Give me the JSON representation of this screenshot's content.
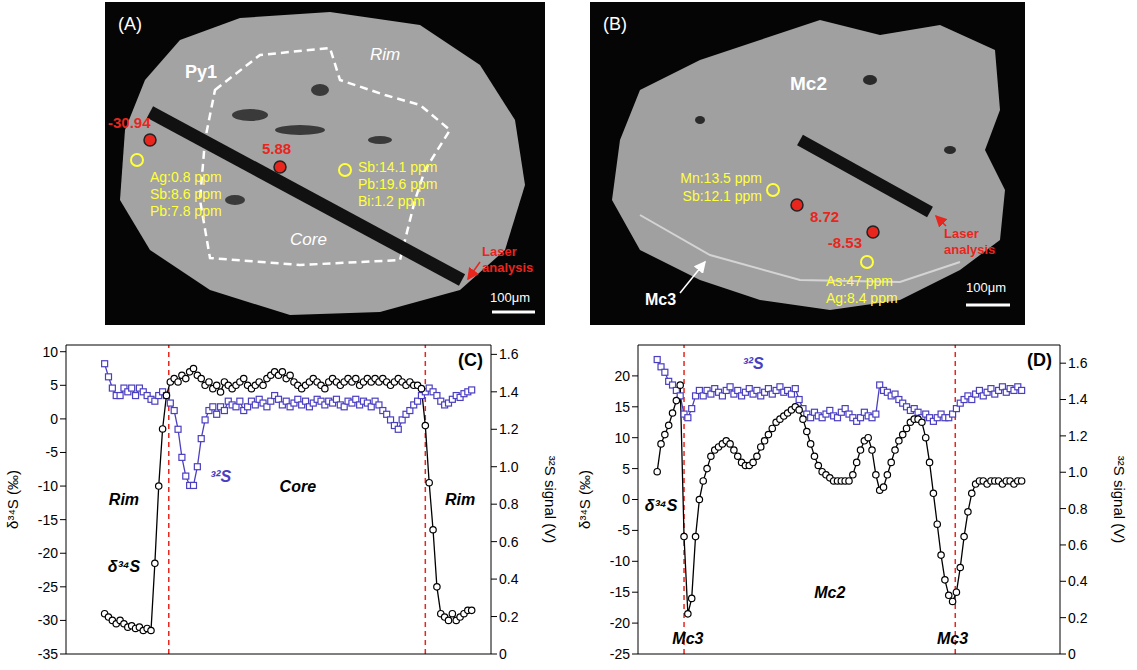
{
  "images": [
    {
      "label": "(A)",
      "labels": {
        "grain": "Py1",
        "core": "Core",
        "rim": "Rim"
      },
      "spots": [
        "-30.94",
        "5.88"
      ],
      "trace_elements": [
        [
          "Ag:0.8 ppm",
          "Sb:8.6 ppm",
          "Pb:7.8 ppm"
        ],
        [
          "Sb:14.1 ppm",
          "Pb:19.6 ppm",
          "Bi:1.2 ppm"
        ]
      ],
      "track": "Laser analysis",
      "scale_bar": "100μm"
    },
    {
      "label": "(B)",
      "labels": {
        "grain": "Mc2",
        "rim": "Mc3"
      },
      "spots": [
        "8.72",
        "-8.53"
      ],
      "trace_elements": [
        [
          "Mn:13.5 ppm",
          "Sb:12.1 ppm"
        ],
        [
          "As:47 ppm",
          "Ag:8.4 ppm"
        ]
      ],
      "track": "Laser analysis",
      "scale_bar": "100μm"
    }
  ],
  "chart_data": [
    {
      "type": "line",
      "panel_label": "(C)",
      "y_label": "δ³⁴S (‰)",
      "y2_label": "³²S signal (V)",
      "tick_labels": "y",
      "xlim": [
        0,
        110
      ],
      "ylim": [
        -35,
        11
      ],
      "yticks": [
        -35,
        -30,
        -25,
        -20,
        -15,
        -10,
        -5,
        0,
        5,
        10
      ],
      "y2lim": [
        0,
        1.65
      ],
      "y2ticks": [
        0,
        0.2,
        0.4,
        0.6,
        0.8,
        {
          "value": 1,
          "label": "1.0"
        },
        1.2,
        1.4,
        1.6
      ],
      "boundaries": [
        26.6,
        93
      ],
      "x": [
        10,
        11,
        12,
        13,
        14,
        15,
        16,
        17,
        18,
        19,
        20,
        21,
        22,
        23,
        24,
        25,
        26,
        27,
        28,
        29,
        30,
        31,
        32,
        33,
        34,
        35,
        36,
        37,
        38,
        39,
        40,
        41,
        42,
        43,
        44,
        45,
        46,
        47,
        48,
        49,
        50,
        51,
        52,
        53,
        54,
        55,
        56,
        57,
        58,
        59,
        60,
        61,
        62,
        63,
        64,
        65,
        66,
        67,
        68,
        69,
        70,
        71,
        72,
        73,
        74,
        75,
        76,
        77,
        78,
        79,
        80,
        81,
        82,
        83,
        84,
        85,
        86,
        87,
        88,
        89,
        90,
        91,
        92,
        93,
        94,
        95,
        96,
        97,
        98,
        99,
        100,
        101,
        102,
        103,
        104,
        105
      ],
      "series": [
        {
          "name": "δ³⁴S",
          "color": "#000000",
          "marker": "circle",
          "values": [
            -29,
            -29.5,
            -30,
            -30.5,
            -30,
            -30.5,
            -31,
            -30.8,
            -31.2,
            -31,
            -31.5,
            -31.2,
            -31.5,
            -21.5,
            -10,
            -1.5,
            3.5,
            5.5,
            6,
            5.5,
            6.5,
            6,
            7,
            7.5,
            6.5,
            6,
            5,
            5.5,
            4.5,
            5,
            4,
            5.5,
            5,
            4.5,
            5,
            5.5,
            6,
            5,
            4.5,
            5,
            5.5,
            5,
            6,
            6.5,
            7,
            6.5,
            7,
            6,
            6.5,
            5.5,
            5,
            4.5,
            5,
            5.5,
            6,
            5.5,
            5,
            4.5,
            5.5,
            6,
            5.5,
            5,
            5.5,
            6,
            5.5,
            6,
            5,
            5.5,
            6,
            5.5,
            6,
            5.5,
            6,
            5.5,
            5,
            5.5,
            6,
            5.5,
            5,
            5.5,
            5,
            5,
            4.5,
            -1,
            -9.5,
            -16.5,
            -25,
            -29,
            -29.5,
            -30,
            -29,
            -30,
            -29.5,
            -29,
            -28.5,
            -28.5
          ]
        },
        {
          "name": "³²S",
          "color": "#4a3fc0",
          "marker": "square",
          "axis": "y2",
          "values": [
            1.55,
            1.48,
            1.42,
            1.38,
            1.38,
            1.42,
            1.4,
            1.42,
            1.38,
            1.42,
            1.4,
            1.38,
            1.36,
            1.35,
            1.38,
            1.4,
            1.38,
            1.34,
            1.3,
            1.2,
            1.05,
            0.95,
            0.9,
            0.9,
            1.0,
            1.15,
            1.25,
            1.3,
            1.32,
            1.28,
            1.32,
            1.3,
            1.35,
            1.33,
            1.32,
            1.35,
            1.3,
            1.32,
            1.35,
            1.33,
            1.36,
            1.34,
            1.32,
            1.35,
            1.38,
            1.36,
            1.33,
            1.35,
            1.32,
            1.34,
            1.36,
            1.33,
            1.35,
            1.32,
            1.34,
            1.36,
            1.35,
            1.33,
            1.35,
            1.34,
            1.36,
            1.33,
            1.32,
            1.35,
            1.34,
            1.36,
            1.33,
            1.35,
            1.34,
            1.32,
            1.35,
            1.33,
            1.3,
            1.28,
            1.25,
            1.22,
            1.2,
            1.25,
            1.28,
            1.3,
            1.33,
            1.35,
            1.38,
            1.4,
            1.42,
            1.4,
            1.38,
            1.35,
            1.33,
            1.34,
            1.36,
            1.38,
            1.37,
            1.39,
            1.4,
            1.41
          ]
        }
      ],
      "annotations": [
        {
          "text": "Rim",
          "x": 15,
          "y": -12
        },
        {
          "text": "Core",
          "x": 60,
          "y": -10
        },
        {
          "text": "Rim",
          "x": 102,
          "y": -12
        },
        {
          "text": "δ³⁴S",
          "x": 15,
          "y": -22,
          "color": "#000000"
        },
        {
          "text": "³²S",
          "x": 40,
          "y": 0.95,
          "axis": "y2",
          "color": "#4a3fc0"
        }
      ]
    },
    {
      "type": "line",
      "panel_label": "(D)",
      "y_label": "δ³⁴S (‰)",
      "y2_label": "³²S signal (V)",
      "tick_labels": "y",
      "xlim": [
        0,
        110
      ],
      "ylim": [
        -25,
        25
      ],
      "yticks": [
        -25,
        -20,
        -15,
        -10,
        -5,
        0,
        5,
        10,
        15,
        20
      ],
      "y2lim": [
        0,
        1.7
      ],
      "y2ticks": [
        0,
        0.2,
        0.4,
        0.6,
        0.8,
        {
          "value": 1,
          "label": "1.0"
        },
        1.2,
        1.4,
        1.6
      ],
      "boundaries": [
        12,
        82.7
      ],
      "x": [
        5,
        6,
        7,
        8,
        9,
        10,
        11,
        12,
        13,
        14,
        15,
        16,
        17,
        18,
        19,
        20,
        21,
        22,
        23,
        24,
        25,
        26,
        27,
        28,
        29,
        30,
        31,
        32,
        33,
        34,
        35,
        36,
        37,
        38,
        39,
        40,
        41,
        42,
        43,
        44,
        45,
        46,
        47,
        48,
        49,
        50,
        51,
        52,
        53,
        54,
        55,
        56,
        57,
        58,
        59,
        60,
        61,
        62,
        63,
        64,
        65,
        66,
        67,
        68,
        69,
        70,
        71,
        72,
        73,
        74,
        75,
        76,
        77,
        78,
        79,
        80,
        81,
        82,
        83,
        84,
        85,
        86,
        87,
        88,
        89,
        90,
        91,
        92,
        93,
        94,
        95,
        96,
        97,
        98,
        99,
        100
      ],
      "series": [
        {
          "name": "δ³⁴S",
          "color": "#000000",
          "marker": "circle",
          "values": [
            4.5,
            9,
            10.5,
            12,
            14,
            16,
            18.5,
            -6,
            -18.5,
            -16,
            -6,
            0,
            3,
            5,
            7,
            8,
            8.5,
            9,
            9.5,
            9,
            8,
            7,
            6,
            5.5,
            5.5,
            6,
            7,
            8.5,
            9.5,
            10.5,
            11.5,
            12.5,
            13,
            13.5,
            14,
            14.5,
            15,
            14.5,
            13,
            11,
            9,
            7,
            5.5,
            4.5,
            4,
            3.5,
            3,
            3,
            3,
            3,
            3,
            4,
            6,
            8,
            9.5,
            10,
            8,
            4,
            1.5,
            2,
            4,
            6,
            8,
            9.5,
            10.5,
            11.5,
            12.5,
            13,
            13,
            12.5,
            10,
            6,
            1,
            -4,
            -9,
            -13,
            -15.5,
            -16.5,
            -15,
            -11,
            -6,
            -2,
            1,
            2.5,
            3,
            3,
            2.5,
            3,
            3,
            3,
            2.5,
            3,
            3,
            2.5,
            3,
            3
          ]
        },
        {
          "name": "³²S",
          "color": "#4a3fc0",
          "marker": "square",
          "axis": "y2",
          "values": [
            1.62,
            1.58,
            1.55,
            1.5,
            1.48,
            1.45,
            1.42,
            1.32,
            1.3,
            1.35,
            1.42,
            1.45,
            1.42,
            1.45,
            1.43,
            1.46,
            1.44,
            1.42,
            1.45,
            1.47,
            1.43,
            1.45,
            1.42,
            1.44,
            1.46,
            1.43,
            1.45,
            1.42,
            1.44,
            1.46,
            1.43,
            1.45,
            1.47,
            1.44,
            1.45,
            1.43,
            1.46,
            1.4,
            1.35,
            1.32,
            1.3,
            1.33,
            1.31,
            1.3,
            1.32,
            1.34,
            1.31,
            1.3,
            1.33,
            1.35,
            1.32,
            1.3,
            1.28,
            1.3,
            1.33,
            1.31,
            1.3,
            1.32,
            1.48,
            1.45,
            1.44,
            1.42,
            1.43,
            1.4,
            1.38,
            1.36,
            1.34,
            1.35,
            1.33,
            1.3,
            1.32,
            1.3,
            1.28,
            1.3,
            1.32,
            1.3,
            1.3,
            1.32,
            1.35,
            1.38,
            1.4,
            1.42,
            1.4,
            1.43,
            1.45,
            1.42,
            1.44,
            1.46,
            1.43,
            1.45,
            1.47,
            1.44,
            1.46,
            1.45,
            1.47,
            1.45
          ]
        }
      ],
      "annotations": [
        {
          "text": "δ³⁴S",
          "x": 6,
          "y": -1,
          "color": "#000000"
        },
        {
          "text": "³²S",
          "x": 30,
          "y": 1.6,
          "axis": "y2",
          "color": "#4a3fc0"
        },
        {
          "text": "Mc3",
          "x": 13,
          "y": -22.5
        },
        {
          "text": "Mc2",
          "x": 50,
          "y": -15
        },
        {
          "text": "Mc3",
          "x": 82,
          "y": -22.5
        }
      ]
    }
  ]
}
